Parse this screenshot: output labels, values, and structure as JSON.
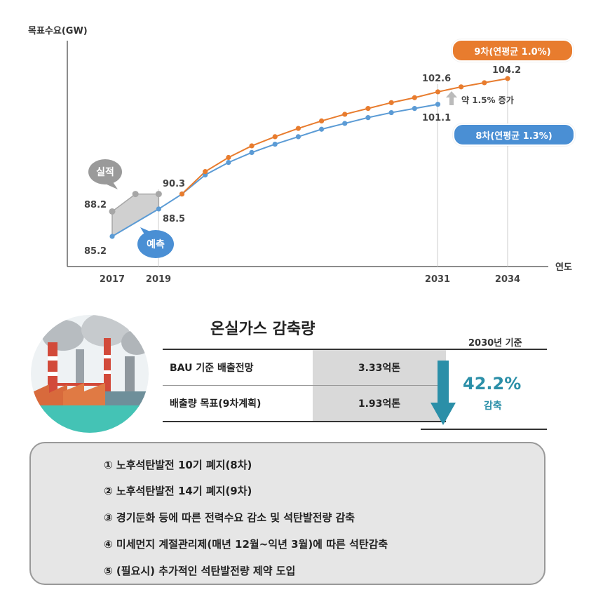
{
  "chart_data": {
    "type": "line",
    "ylabel": "목표수요(GW)",
    "xlabel": "연도",
    "x_ticks": [
      "2017",
      "2019",
      "2031",
      "2034"
    ],
    "series": [
      {
        "name": "실적",
        "color": "#a6a6a6",
        "points": [
          [
            2017,
            88.2
          ],
          [
            2018,
            90.3
          ],
          [
            2019,
            90.3
          ]
        ]
      },
      {
        "name": "8차(연평균 1.3%)",
        "color": "#5b9bd5",
        "points": [
          [
            2017,
            85.2
          ],
          [
            2019,
            88.5
          ],
          [
            2020,
            90.3
          ],
          [
            2021,
            92.6
          ],
          [
            2022,
            94.1
          ],
          [
            2023,
            95.3
          ],
          [
            2024,
            96.3
          ],
          [
            2025,
            97.2
          ],
          [
            2026,
            98.1
          ],
          [
            2027,
            98.8
          ],
          [
            2028,
            99.5
          ],
          [
            2029,
            100.1
          ],
          [
            2030,
            100.6
          ],
          [
            2031,
            101.1
          ]
        ]
      },
      {
        "name": "9차(연평균 1.0%)",
        "color": "#e87c2e",
        "points": [
          [
            2020,
            90.3
          ],
          [
            2021,
            93.0
          ],
          [
            2022,
            94.7
          ],
          [
            2023,
            96.1
          ],
          [
            2024,
            97.2
          ],
          [
            2025,
            98.2
          ],
          [
            2026,
            99.1
          ],
          [
            2027,
            99.9
          ],
          [
            2028,
            100.6
          ],
          [
            2029,
            101.3
          ],
          [
            2030,
            101.9
          ],
          [
            2031,
            102.6
          ],
          [
            2032,
            103.2
          ],
          [
            2033,
            103.7
          ],
          [
            2034,
            104.2
          ]
        ]
      }
    ],
    "value_labels": [
      {
        "text": "85.2",
        "series": "8차"
      },
      {
        "text": "88.2",
        "series": "실적"
      },
      {
        "text": "90.3",
        "series": "실적"
      },
      {
        "text": "88.5",
        "series": "8차"
      },
      {
        "text": "102.6",
        "series": "9차"
      },
      {
        "text": "104.2",
        "series": "9차"
      },
      {
        "text": "101.1",
        "series": "8차"
      }
    ],
    "annotations": {
      "actual": "실적",
      "forecast": "예측",
      "increase": "약 1.5% 증가",
      "plan9": "9차(연평균 1.0%)",
      "plan8": "8차(연평균 1.3%)"
    },
    "colors": {
      "orange": "#e87c2e",
      "blue": "#5b9bd5",
      "gray": "#a6a6a6"
    }
  },
  "ghg": {
    "title": "온실가스 감축량",
    "basis": "2030년 기준",
    "rows": [
      {
        "label": "BAU 기준 배출전망",
        "value": "3.33억톤"
      },
      {
        "label": "배출량 목표(9차계획)",
        "value": "1.93억톤"
      }
    ],
    "reduction_pct": "42.2%",
    "reduction_word": "감축"
  },
  "policies": [
    "① 노후석탄발전 10기 폐지(8차)",
    "② 노후석탄발전 14기 폐지(9차)",
    "③ 경기둔화 등에 따른 전력수요 감소 및 석탄발전량 감축",
    "④ 미세먼지 계절관리제(매년 12월~익년 3월)에 따른 석탄감축",
    "⑤ (필요시) 추가적인 석탄발전량 제약 도입"
  ]
}
